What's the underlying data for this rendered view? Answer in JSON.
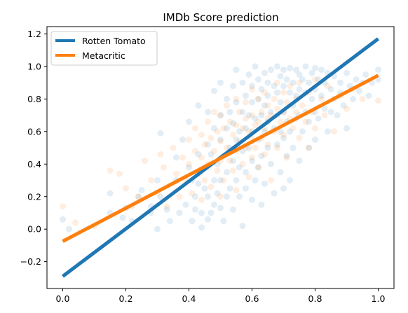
{
  "chart_data": {
    "type": "scatter",
    "title": "IMDb Score prediction",
    "xlabel": "",
    "ylabel": "",
    "xlim": [
      -0.05,
      1.05
    ],
    "ylim": [
      -0.365,
      1.245
    ],
    "xticks": [
      "0.0",
      "0.2",
      "0.4",
      "0.6",
      "0.8",
      "1.0"
    ],
    "xtick_values": [
      0.0,
      0.2,
      0.4,
      0.6,
      0.8,
      1.0
    ],
    "yticks": [
      "−0.2",
      "0.0",
      "0.2",
      "0.4",
      "0.6",
      "0.8",
      "1.0",
      "1.2"
    ],
    "ytick_values": [
      -0.2,
      0.0,
      0.2,
      0.4,
      0.6,
      0.8,
      1.0,
      1.2
    ],
    "grid": false,
    "legend_position": "top-left",
    "series": [
      {
        "name": "Rotten Tomato",
        "color": "#1f77b4",
        "points": [
          [
            0.0,
            0.06
          ],
          [
            0.02,
            0.0
          ],
          [
            0.15,
            0.22
          ],
          [
            0.15,
            0.1
          ],
          [
            0.19,
            0.07
          ],
          [
            0.2,
            0.13
          ],
          [
            0.22,
            0.05
          ],
          [
            0.24,
            0.2
          ],
          [
            0.25,
            0.24
          ],
          [
            0.28,
            0.14
          ],
          [
            0.28,
            0.1
          ],
          [
            0.3,
            0.3
          ],
          [
            0.3,
            0.0
          ],
          [
            0.31,
            0.59
          ],
          [
            0.31,
            0.2
          ],
          [
            0.33,
            0.12
          ],
          [
            0.34,
            0.05
          ],
          [
            0.36,
            0.44
          ],
          [
            0.36,
            0.3
          ],
          [
            0.37,
            0.1
          ],
          [
            0.38,
            0.55
          ],
          [
            0.39,
            0.15
          ],
          [
            0.4,
            0.66
          ],
          [
            0.4,
            0.38
          ],
          [
            0.41,
            0.3
          ],
          [
            0.41,
            0.05
          ],
          [
            0.42,
            0.2
          ],
          [
            0.42,
            0.12
          ],
          [
            0.43,
            0.76
          ],
          [
            0.43,
            0.46
          ],
          [
            0.43,
            0.28
          ],
          [
            0.44,
            0.1
          ],
          [
            0.44,
            0.01
          ],
          [
            0.45,
            0.38
          ],
          [
            0.45,
            0.25
          ],
          [
            0.46,
            0.72
          ],
          [
            0.46,
            0.52
          ],
          [
            0.46,
            0.2
          ],
          [
            0.46,
            0.06
          ],
          [
            0.47,
            0.46
          ],
          [
            0.47,
            0.1
          ],
          [
            0.48,
            0.85
          ],
          [
            0.48,
            0.62
          ],
          [
            0.48,
            0.3
          ],
          [
            0.48,
            0.15
          ],
          [
            0.49,
            0.4
          ],
          [
            0.49,
            0.22
          ],
          [
            0.5,
            0.9
          ],
          [
            0.5,
            0.7
          ],
          [
            0.5,
            0.55
          ],
          [
            0.5,
            0.3
          ],
          [
            0.5,
            0.13
          ],
          [
            0.51,
            0.45
          ],
          [
            0.51,
            0.05
          ],
          [
            0.52,
            0.8
          ],
          [
            0.52,
            0.62
          ],
          [
            0.52,
            0.35
          ],
          [
            0.52,
            0.2
          ],
          [
            0.53,
            0.72
          ],
          [
            0.53,
            0.5
          ],
          [
            0.53,
            0.25
          ],
          [
            0.54,
            0.88
          ],
          [
            0.54,
            0.65
          ],
          [
            0.54,
            0.42
          ],
          [
            0.54,
            0.12
          ],
          [
            0.55,
            0.98
          ],
          [
            0.55,
            0.78
          ],
          [
            0.55,
            0.55
          ],
          [
            0.55,
            0.3
          ],
          [
            0.56,
            0.6
          ],
          [
            0.56,
            0.38
          ],
          [
            0.56,
            0.2
          ],
          [
            0.57,
            0.9
          ],
          [
            0.57,
            0.72
          ],
          [
            0.57,
            0.48
          ],
          [
            0.57,
            0.02
          ],
          [
            0.58,
            0.82
          ],
          [
            0.58,
            0.62
          ],
          [
            0.58,
            0.35
          ],
          [
            0.58,
            0.25
          ],
          [
            0.59,
            0.95
          ],
          [
            0.59,
            0.7
          ],
          [
            0.59,
            0.5
          ],
          [
            0.6,
            0.88
          ],
          [
            0.6,
            0.78
          ],
          [
            0.6,
            0.6
          ],
          [
            0.6,
            0.42
          ],
          [
            0.6,
            0.18
          ],
          [
            0.61,
            1.0
          ],
          [
            0.61,
            0.68
          ],
          [
            0.61,
            0.3
          ],
          [
            0.62,
            0.92
          ],
          [
            0.62,
            0.8
          ],
          [
            0.62,
            0.55
          ],
          [
            0.62,
            0.38
          ],
          [
            0.63,
            0.86
          ],
          [
            0.63,
            0.7
          ],
          [
            0.63,
            0.45
          ],
          [
            0.63,
            0.15
          ],
          [
            0.64,
            0.96
          ],
          [
            0.64,
            0.76
          ],
          [
            0.64,
            0.6
          ],
          [
            0.64,
            0.28
          ],
          [
            0.65,
            0.9
          ],
          [
            0.65,
            0.82
          ],
          [
            0.65,
            0.66
          ],
          [
            0.65,
            0.5
          ],
          [
            0.66,
            0.98
          ],
          [
            0.66,
            0.72
          ],
          [
            0.66,
            0.4
          ],
          [
            0.67,
            0.88
          ],
          [
            0.67,
            0.62
          ],
          [
            0.67,
            0.22
          ],
          [
            0.68,
            1.0
          ],
          [
            0.68,
            0.84
          ],
          [
            0.68,
            0.7
          ],
          [
            0.68,
            0.52
          ],
          [
            0.69,
            0.94
          ],
          [
            0.69,
            0.78
          ],
          [
            0.69,
            0.6
          ],
          [
            0.69,
            0.35
          ],
          [
            0.7,
            0.98
          ],
          [
            0.7,
            0.88
          ],
          [
            0.7,
            0.72
          ],
          [
            0.7,
            0.56
          ],
          [
            0.7,
            0.25
          ],
          [
            0.71,
            0.92
          ],
          [
            0.71,
            0.66
          ],
          [
            0.71,
            0.45
          ],
          [
            0.72,
            0.99
          ],
          [
            0.72,
            0.84
          ],
          [
            0.72,
            0.6
          ],
          [
            0.72,
            0.3
          ],
          [
            0.73,
            0.9
          ],
          [
            0.73,
            0.76
          ],
          [
            0.73,
            0.5
          ],
          [
            0.74,
            0.98
          ],
          [
            0.74,
            0.82
          ],
          [
            0.74,
            0.68
          ],
          [
            0.75,
            0.95
          ],
          [
            0.75,
            0.86
          ],
          [
            0.75,
            0.7
          ],
          [
            0.75,
            0.42
          ],
          [
            0.76,
            0.92
          ],
          [
            0.76,
            0.6
          ],
          [
            0.77,
            1.0
          ],
          [
            0.77,
            0.84
          ],
          [
            0.77,
            0.72
          ],
          [
            0.78,
            0.9
          ],
          [
            0.78,
            0.66
          ],
          [
            0.78,
            0.5
          ],
          [
            0.79,
            0.96
          ],
          [
            0.79,
            0.8
          ],
          [
            0.8,
            0.99
          ],
          [
            0.8,
            0.86
          ],
          [
            0.8,
            0.72
          ],
          [
            0.8,
            0.55
          ],
          [
            0.81,
            0.92
          ],
          [
            0.81,
            0.68
          ],
          [
            0.82,
            0.98
          ],
          [
            0.82,
            0.82
          ],
          [
            0.83,
            0.9
          ],
          [
            0.83,
            0.74
          ],
          [
            0.84,
            0.96
          ],
          [
            0.84,
            0.6
          ],
          [
            0.85,
            0.86
          ],
          [
            0.85,
            0.72
          ],
          [
            0.86,
            0.94
          ],
          [
            0.86,
            0.8
          ],
          [
            0.87,
            0.7
          ],
          [
            0.88,
            0.9
          ],
          [
            0.88,
            0.84
          ],
          [
            0.89,
            0.76
          ],
          [
            0.9,
            0.96
          ],
          [
            0.9,
            0.62
          ],
          [
            0.91,
            0.88
          ],
          [
            0.92,
            0.8
          ],
          [
            0.93,
            0.92
          ],
          [
            0.94,
            0.85
          ],
          [
            0.95,
            0.9
          ],
          [
            0.96,
            0.95
          ],
          [
            0.97,
            0.82
          ],
          [
            0.98,
            0.9
          ],
          [
            1.0,
            0.92
          ],
          [
            1.0,
            0.98
          ]
        ]
      },
      {
        "name": "Metacritic",
        "color": "#ff7f0e",
        "points": [
          [
            0.0,
            0.14
          ],
          [
            0.04,
            0.04
          ],
          [
            0.1,
            0.02
          ],
          [
            0.15,
            0.36
          ],
          [
            0.18,
            0.34
          ],
          [
            0.2,
            0.25
          ],
          [
            0.22,
            0.14
          ],
          [
            0.24,
            0.2
          ],
          [
            0.26,
            0.42
          ],
          [
            0.28,
            0.3
          ],
          [
            0.3,
            0.22
          ],
          [
            0.31,
            0.46
          ],
          [
            0.32,
            0.38
          ],
          [
            0.33,
            0.14
          ],
          [
            0.35,
            0.5
          ],
          [
            0.36,
            0.34
          ],
          [
            0.37,
            0.2
          ],
          [
            0.38,
            0.44
          ],
          [
            0.39,
            0.3
          ],
          [
            0.4,
            0.55
          ],
          [
            0.4,
            0.4
          ],
          [
            0.41,
            0.22
          ],
          [
            0.42,
            0.62
          ],
          [
            0.42,
            0.48
          ],
          [
            0.43,
            0.34
          ],
          [
            0.44,
            0.58
          ],
          [
            0.44,
            0.44
          ],
          [
            0.44,
            0.18
          ],
          [
            0.45,
            0.52
          ],
          [
            0.45,
            0.3
          ],
          [
            0.46,
            0.66
          ],
          [
            0.46,
            0.4
          ],
          [
            0.47,
            0.56
          ],
          [
            0.47,
            0.26
          ],
          [
            0.48,
            0.72
          ],
          [
            0.48,
            0.48
          ],
          [
            0.49,
            0.6
          ],
          [
            0.49,
            0.36
          ],
          [
            0.5,
            0.7
          ],
          [
            0.5,
            0.54
          ],
          [
            0.5,
            0.42
          ],
          [
            0.5,
            0.2
          ],
          [
            0.51,
            0.62
          ],
          [
            0.51,
            0.3
          ],
          [
            0.52,
            0.76
          ],
          [
            0.52,
            0.5
          ],
          [
            0.53,
            0.66
          ],
          [
            0.53,
            0.42
          ],
          [
            0.54,
            0.58
          ],
          [
            0.54,
            0.36
          ],
          [
            0.55,
            0.8
          ],
          [
            0.55,
            0.64
          ],
          [
            0.55,
            0.48
          ],
          [
            0.55,
            0.24
          ],
          [
            0.56,
            0.72
          ],
          [
            0.56,
            0.54
          ],
          [
            0.57,
            0.62
          ],
          [
            0.57,
            0.4
          ],
          [
            0.58,
            0.78
          ],
          [
            0.58,
            0.68
          ],
          [
            0.58,
            0.5
          ],
          [
            0.59,
            0.6
          ],
          [
            0.59,
            0.32
          ],
          [
            0.6,
            0.86
          ],
          [
            0.6,
            0.7
          ],
          [
            0.6,
            0.56
          ],
          [
            0.6,
            0.44
          ],
          [
            0.61,
            0.64
          ],
          [
            0.61,
            0.5
          ],
          [
            0.62,
            0.8
          ],
          [
            0.62,
            0.66
          ],
          [
            0.62,
            0.38
          ],
          [
            0.63,
            0.72
          ],
          [
            0.63,
            0.56
          ],
          [
            0.64,
            0.84
          ],
          [
            0.64,
            0.62
          ],
          [
            0.64,
            0.46
          ],
          [
            0.65,
            0.76
          ],
          [
            0.65,
            0.68
          ],
          [
            0.65,
            0.52
          ],
          [
            0.66,
            0.7
          ],
          [
            0.66,
            0.3
          ],
          [
            0.67,
            0.8
          ],
          [
            0.67,
            0.6
          ],
          [
            0.68,
            0.9
          ],
          [
            0.68,
            0.74
          ],
          [
            0.68,
            0.5
          ],
          [
            0.69,
            0.66
          ],
          [
            0.7,
            0.84
          ],
          [
            0.7,
            0.72
          ],
          [
            0.7,
            0.58
          ],
          [
            0.71,
            0.78
          ],
          [
            0.71,
            0.44
          ],
          [
            0.72,
            0.88
          ],
          [
            0.72,
            0.68
          ],
          [
            0.73,
            0.62
          ],
          [
            0.74,
            0.8
          ],
          [
            0.74,
            0.72
          ],
          [
            0.75,
            0.9
          ],
          [
            0.75,
            0.56
          ],
          [
            0.76,
            0.76
          ],
          [
            0.77,
            0.66
          ],
          [
            0.78,
            0.84
          ],
          [
            0.78,
            0.5
          ],
          [
            0.79,
            0.72
          ],
          [
            0.8,
            0.92
          ],
          [
            0.8,
            0.62
          ],
          [
            0.82,
            0.8
          ],
          [
            0.83,
            0.7
          ],
          [
            0.84,
            0.88
          ],
          [
            0.86,
            0.6
          ],
          [
            0.88,
            0.82
          ],
          [
            0.9,
            0.74
          ],
          [
            0.92,
            0.86
          ],
          [
            0.95,
            0.8
          ],
          [
            1.0,
            0.79
          ]
        ]
      }
    ],
    "trend_lines": [
      {
        "name": "Rotten Tomato",
        "color": "#1f77b4",
        "x": [
          0.0,
          1.0
        ],
        "y": [
          -0.29,
          1.17
        ]
      },
      {
        "name": "Metacritic",
        "color": "#ff7f0e",
        "x": [
          0.0,
          1.0
        ],
        "y": [
          -0.075,
          0.945
        ]
      }
    ]
  }
}
